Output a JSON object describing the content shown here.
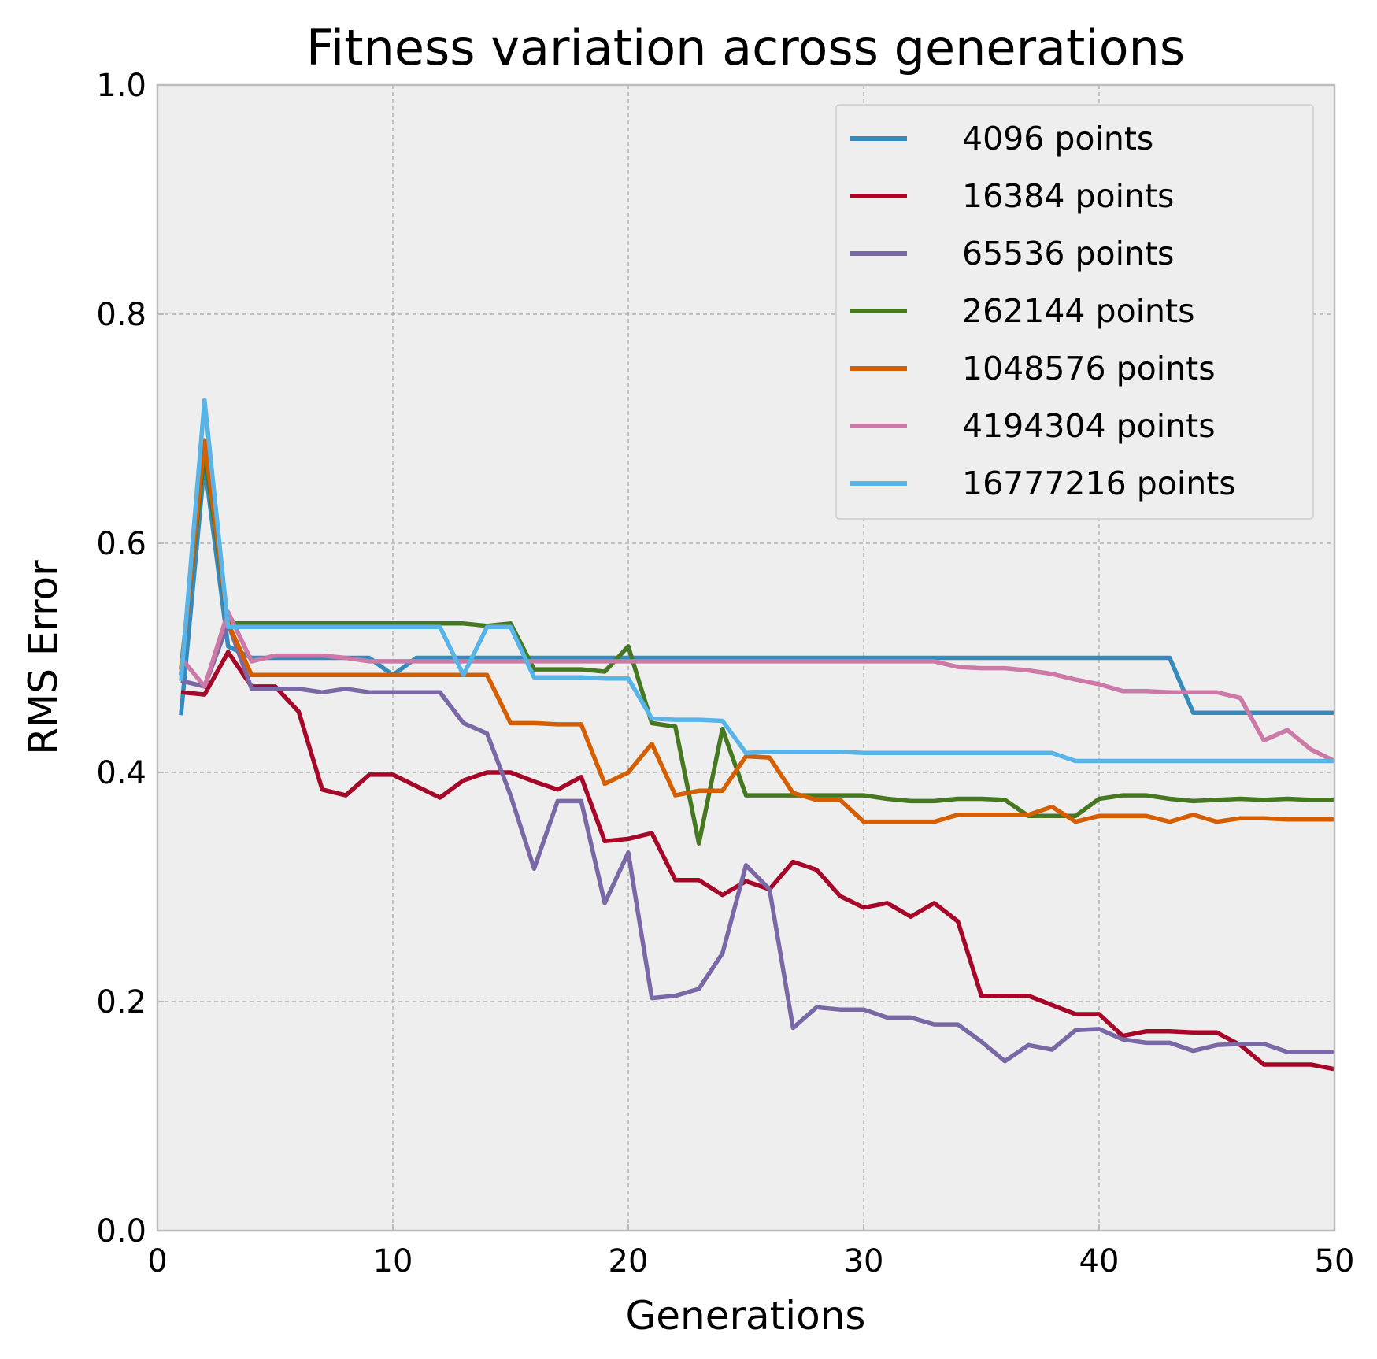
{
  "chart_data": {
    "type": "line",
    "title": "Fitness variation across generations",
    "xlabel": "Generations",
    "ylabel": "RMS Error",
    "xlim": [
      0,
      50
    ],
    "ylim": [
      0.0,
      1.0
    ],
    "xticks": [
      0,
      10,
      20,
      30,
      40,
      50
    ],
    "xtick_labels": [
      "0",
      "10",
      "20",
      "30",
      "40",
      "50"
    ],
    "yticks": [
      0.0,
      0.2,
      0.4,
      0.6,
      0.8,
      1.0
    ],
    "ytick_labels": [
      "0.0",
      "0.2",
      "0.4",
      "0.6",
      "0.8",
      "1.0"
    ],
    "grid": true,
    "legend_position": "top-right",
    "x": [
      1,
      2,
      3,
      4,
      5,
      6,
      7,
      8,
      9,
      10,
      11,
      12,
      13,
      14,
      15,
      16,
      17,
      18,
      19,
      20,
      21,
      22,
      23,
      24,
      25,
      26,
      27,
      28,
      29,
      30,
      31,
      32,
      33,
      34,
      35,
      36,
      37,
      38,
      39,
      40,
      41,
      42,
      43,
      44,
      45,
      46,
      47,
      48,
      49,
      50
    ],
    "series": [
      {
        "name": "4096 points",
        "color": "#348abd",
        "values": [
          0.45,
          0.67,
          0.51,
          0.5,
          0.5,
          0.5,
          0.5,
          0.5,
          0.5,
          0.485,
          0.5,
          0.5,
          0.5,
          0.5,
          0.5,
          0.5,
          0.5,
          0.5,
          0.5,
          0.5,
          0.5,
          0.5,
          0.5,
          0.5,
          0.5,
          0.5,
          0.5,
          0.5,
          0.5,
          0.5,
          0.5,
          0.5,
          0.5,
          0.5,
          0.5,
          0.5,
          0.5,
          0.5,
          0.5,
          0.5,
          0.5,
          0.5,
          0.5,
          0.452,
          0.452,
          0.452,
          0.452,
          0.452,
          0.452,
          0.452
        ]
      },
      {
        "name": "16384 points",
        "color": "#a60628",
        "values": [
          0.47,
          0.468,
          0.505,
          0.475,
          0.475,
          0.453,
          0.385,
          0.38,
          0.398,
          0.398,
          0.388,
          0.378,
          0.393,
          0.4,
          0.4,
          0.392,
          0.385,
          0.396,
          0.34,
          0.342,
          0.347,
          0.306,
          0.306,
          0.293,
          0.305,
          0.298,
          0.322,
          0.315,
          0.292,
          0.282,
          0.286,
          0.274,
          0.286,
          0.27,
          0.205,
          0.205,
          0.205,
          0.197,
          0.189,
          0.189,
          0.17,
          0.174,
          0.174,
          0.173,
          0.173,
          0.162,
          0.145,
          0.145,
          0.145,
          0.141
        ]
      },
      {
        "name": "65536 points",
        "color": "#7a68a6",
        "values": [
          0.48,
          0.475,
          0.53,
          0.473,
          0.473,
          0.473,
          0.47,
          0.473,
          0.47,
          0.47,
          0.47,
          0.47,
          0.443,
          0.434,
          0.38,
          0.316,
          0.375,
          0.375,
          0.286,
          0.33,
          0.203,
          0.205,
          0.211,
          0.242,
          0.319,
          0.298,
          0.177,
          0.195,
          0.193,
          0.193,
          0.186,
          0.186,
          0.18,
          0.18,
          0.165,
          0.148,
          0.162,
          0.158,
          0.175,
          0.176,
          0.167,
          0.164,
          0.164,
          0.157,
          0.162,
          0.163,
          0.163,
          0.156,
          0.156,
          0.156
        ]
      },
      {
        "name": "262144 points",
        "color": "#467821",
        "values": [
          0.49,
          0.68,
          0.53,
          0.53,
          0.53,
          0.53,
          0.53,
          0.53,
          0.53,
          0.53,
          0.53,
          0.53,
          0.53,
          0.528,
          0.53,
          0.49,
          0.49,
          0.49,
          0.488,
          0.51,
          0.443,
          0.44,
          0.338,
          0.438,
          0.38,
          0.38,
          0.38,
          0.38,
          0.38,
          0.38,
          0.377,
          0.375,
          0.375,
          0.377,
          0.377,
          0.376,
          0.362,
          0.362,
          0.362,
          0.377,
          0.38,
          0.38,
          0.377,
          0.375,
          0.376,
          0.377,
          0.376,
          0.377,
          0.376,
          0.376
        ]
      },
      {
        "name": "1048576 points",
        "color": "#d55e00",
        "values": [
          0.485,
          0.69,
          0.53,
          0.485,
          0.485,
          0.485,
          0.485,
          0.485,
          0.485,
          0.485,
          0.485,
          0.485,
          0.485,
          0.485,
          0.443,
          0.443,
          0.442,
          0.442,
          0.39,
          0.4,
          0.425,
          0.38,
          0.384,
          0.384,
          0.414,
          0.413,
          0.382,
          0.376,
          0.376,
          0.357,
          0.357,
          0.357,
          0.357,
          0.363,
          0.363,
          0.363,
          0.363,
          0.37,
          0.357,
          0.362,
          0.362,
          0.362,
          0.357,
          0.363,
          0.357,
          0.36,
          0.36,
          0.359,
          0.359,
          0.359
        ]
      },
      {
        "name": "4194304 points",
        "color": "#cc79a7",
        "values": [
          0.5,
          0.475,
          0.54,
          0.497,
          0.502,
          0.502,
          0.502,
          0.5,
          0.497,
          0.497,
          0.497,
          0.497,
          0.497,
          0.497,
          0.497,
          0.497,
          0.497,
          0.497,
          0.497,
          0.497,
          0.497,
          0.497,
          0.497,
          0.497,
          0.497,
          0.497,
          0.497,
          0.497,
          0.497,
          0.497,
          0.497,
          0.497,
          0.497,
          0.492,
          0.491,
          0.491,
          0.489,
          0.486,
          0.481,
          0.477,
          0.471,
          0.471,
          0.47,
          0.47,
          0.47,
          0.465,
          0.428,
          0.437,
          0.42,
          0.41
        ]
      },
      {
        "name": "16777216 points",
        "color": "#56b4e9",
        "values": [
          0.48,
          0.725,
          0.527,
          0.527,
          0.527,
          0.527,
          0.527,
          0.527,
          0.527,
          0.527,
          0.527,
          0.527,
          0.485,
          0.527,
          0.527,
          0.483,
          0.483,
          0.483,
          0.482,
          0.482,
          0.447,
          0.446,
          0.446,
          0.445,
          0.417,
          0.418,
          0.418,
          0.418,
          0.418,
          0.417,
          0.417,
          0.417,
          0.417,
          0.417,
          0.417,
          0.417,
          0.417,
          0.417,
          0.41,
          0.41,
          0.41,
          0.41,
          0.41,
          0.41,
          0.41,
          0.41,
          0.41,
          0.41,
          0.41,
          0.41
        ]
      }
    ]
  }
}
